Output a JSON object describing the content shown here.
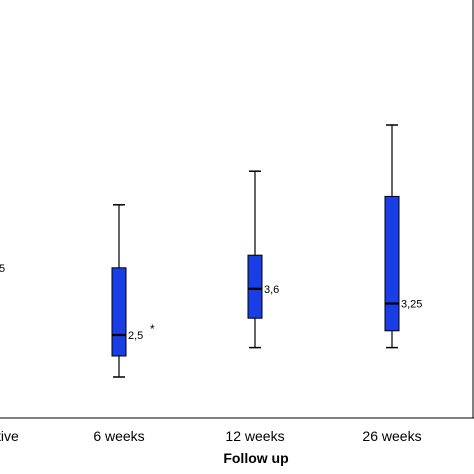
{
  "chart_data": {
    "type": "box",
    "xlabel": "Follow up",
    "ylabel": "",
    "categories": [
      "Preoperative",
      "6 weeks",
      "12 weeks",
      "26 weeks"
    ],
    "visible_first_category_text": "tive",
    "visible_first_median_label": "5",
    "ylim": [
      0,
      10
    ],
    "box_color": "#1a3ee6",
    "boxes": [
      {
        "category": "Preoperative",
        "median": null,
        "median_label": "",
        "whisker_low": null,
        "q1": null,
        "q3": null,
        "whisker_high": null,
        "outlier_label": ""
      },
      {
        "category": "6 weeks",
        "median": 2.5,
        "median_label": "2,5",
        "whisker_low": 1.5,
        "q1": 2.0,
        "q3": 4.1,
        "whisker_high": 5.6,
        "outlier_label": "*"
      },
      {
        "category": "12 weeks",
        "median": 3.6,
        "median_label": "3,6",
        "whisker_low": 2.2,
        "q1": 2.9,
        "q3": 4.4,
        "whisker_high": 6.4,
        "outlier_label": ""
      },
      {
        "category": "26 weeks",
        "median": 3.25,
        "median_label": "3,25",
        "whisker_low": 2.2,
        "q1": 2.6,
        "q3": 5.8,
        "whisker_high": 7.5,
        "outlier_label": ""
      }
    ]
  }
}
